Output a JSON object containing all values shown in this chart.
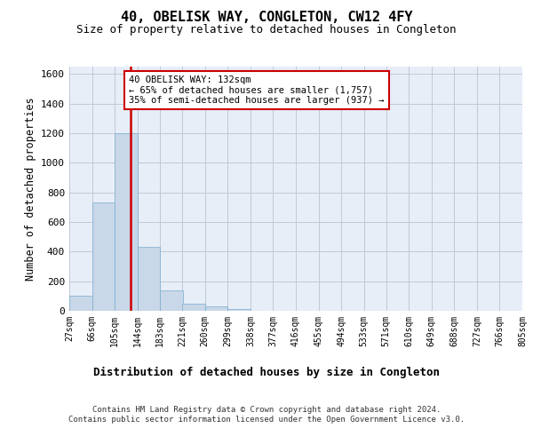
{
  "title1": "40, OBELISK WAY, CONGLETON, CW12 4FY",
  "title2": "Size of property relative to detached houses in Congleton",
  "xlabel": "Distribution of detached houses by size in Congleton",
  "ylabel": "Number of detached properties",
  "bar_color": "#c8d8e8",
  "bar_edge_color": "#7aabcf",
  "grid_color": "#c0c8d8",
  "bg_color": "#e8eef8",
  "vline_color": "#cc0000",
  "vline_x": 132,
  "annotation_text": "40 OBELISK WAY: 132sqm\n← 65% of detached houses are smaller (1,757)\n35% of semi-detached houses are larger (937) →",
  "annotation_box_color": "#ffffff",
  "annotation_box_edge": "#cc0000",
  "footer": "Contains HM Land Registry data © Crown copyright and database right 2024.\nContains public sector information licensed under the Open Government Licence v3.0.",
  "bin_edges": [
    27,
    66,
    105,
    144,
    183,
    221,
    260,
    299,
    338,
    377,
    416,
    455,
    494,
    533,
    571,
    610,
    649,
    688,
    727,
    766,
    805
  ],
  "counts": [
    105,
    735,
    1200,
    435,
    140,
    50,
    30,
    15,
    0,
    0,
    0,
    0,
    0,
    0,
    0,
    0,
    0,
    0,
    0,
    0
  ],
  "ylim": [
    0,
    1650
  ],
  "yticks": [
    0,
    200,
    400,
    600,
    800,
    1000,
    1200,
    1400,
    1600
  ]
}
